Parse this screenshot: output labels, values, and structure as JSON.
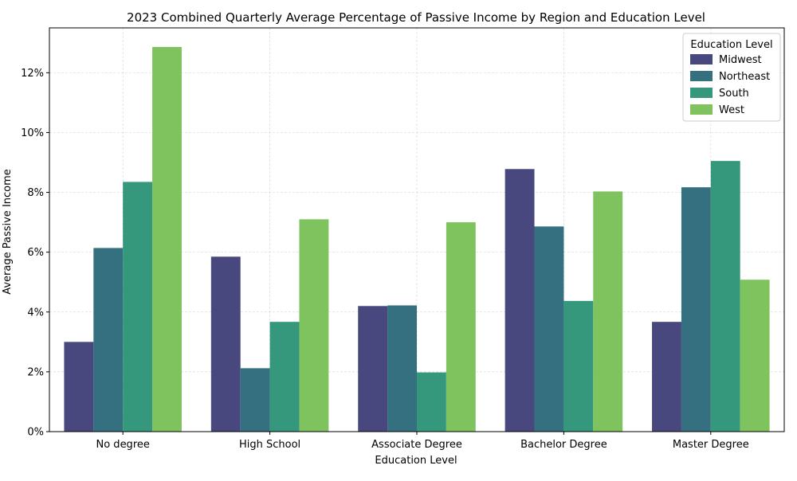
{
  "chart_data": {
    "type": "bar",
    "title": "2023 Combined Quarterly Average Percentage of Passive Income by Region and Education Level",
    "xlabel": "Education Level",
    "ylabel": "Average Passive Income",
    "categories": [
      "No degree",
      "High School",
      "Associate Degree",
      "Bachelor Degree",
      "Master Degree"
    ],
    "series": [
      {
        "name": "Midwest",
        "color": "#48487e",
        "values": [
          3.0,
          5.85,
          4.2,
          8.78,
          3.67
        ]
      },
      {
        "name": "Northeast",
        "color": "#34707f",
        "values": [
          6.14,
          2.12,
          4.22,
          6.86,
          8.17
        ]
      },
      {
        "name": "South",
        "color": "#35977b",
        "values": [
          8.35,
          3.67,
          1.98,
          4.37,
          9.05
        ]
      },
      {
        "name": "West",
        "color": "#7ec35e",
        "values": [
          12.86,
          7.1,
          7.0,
          8.03,
          5.08
        ]
      }
    ],
    "ylim": [
      0,
      13.5
    ],
    "yticks": [
      0,
      2,
      4,
      6,
      8,
      10,
      12
    ],
    "ytick_format": "{v}%",
    "grid": true,
    "legend": {
      "title": "Education Level",
      "position": "top-right"
    }
  }
}
